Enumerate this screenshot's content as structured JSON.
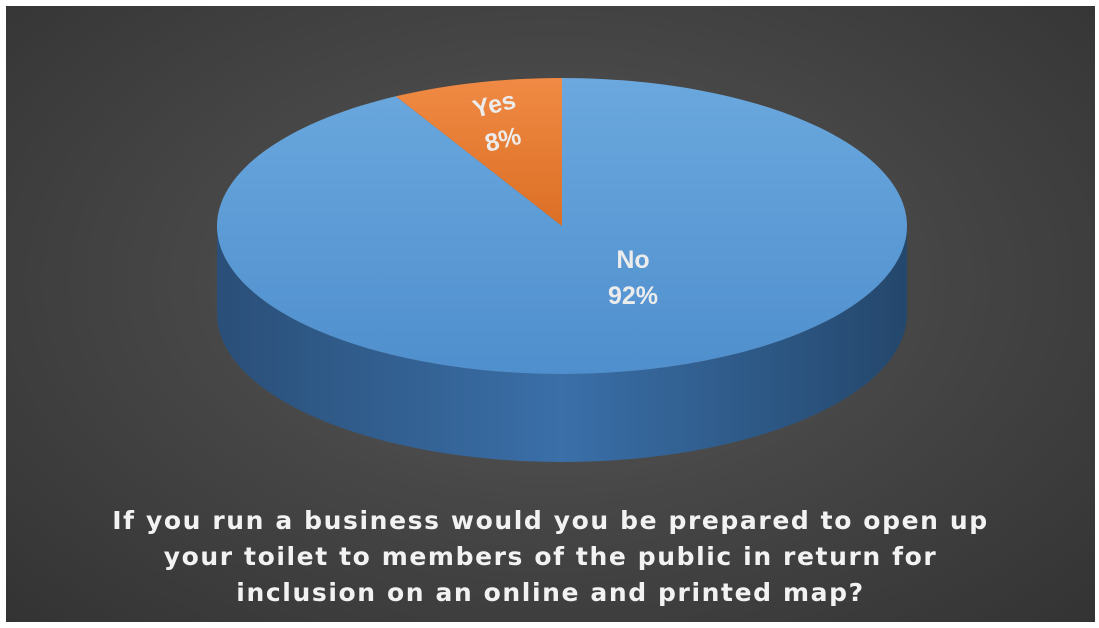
{
  "chart_data": {
    "type": "pie",
    "title": "",
    "categories": [
      "No",
      "Yes"
    ],
    "values": [
      92,
      8
    ],
    "labels": [
      {
        "category": "No",
        "value_text": "92%"
      },
      {
        "category": "Yes",
        "value_text": "8%"
      }
    ],
    "colors": {
      "No": "#5b9bd5",
      "Yes": "#ed7d31"
    },
    "legend": "none",
    "style": "3d"
  },
  "caption": {
    "lines": [
      "If you run a business would you be prepared to open up",
      "your toilet to members of the public in return for",
      "inclusion on an online and printed map?"
    ]
  }
}
